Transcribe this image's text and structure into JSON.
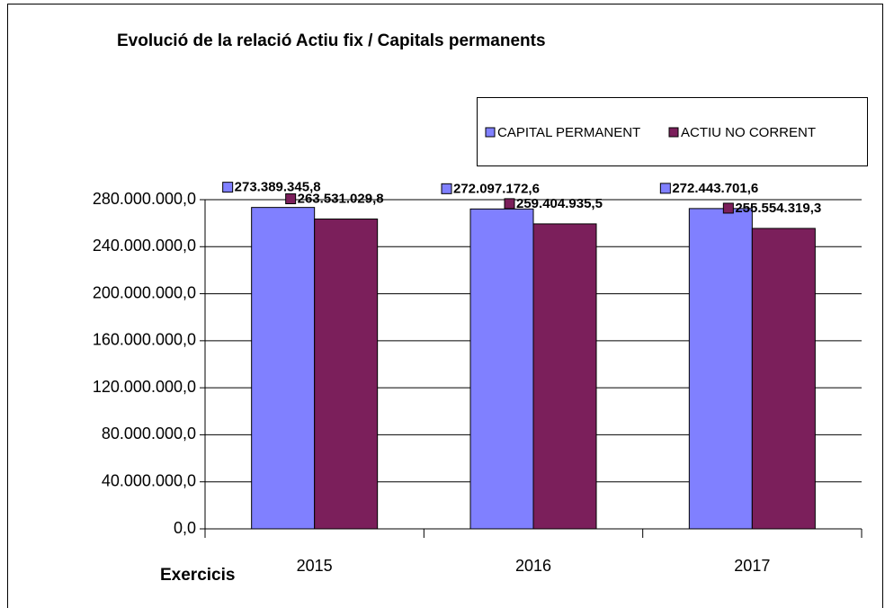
{
  "chart_data": {
    "type": "bar",
    "title": "Evolució de la relació Actiu fix / Capitals permanents",
    "x_label": "Exercicis",
    "categories": [
      "2015",
      "2016",
      "2017"
    ],
    "series": [
      {
        "name": "CAPITAL PERMANENT",
        "color": "#8080ff",
        "values": [
          273389345.8,
          272097172.6,
          272443701.6
        ],
        "value_labels": [
          "273.389.345,8",
          "272.097.172,6",
          "272.443.701,6"
        ]
      },
      {
        "name": "ACTIU NO CORRENT",
        "color": "#7b1f5b",
        "values": [
          263531029.8,
          259404935.5,
          255554319.3
        ],
        "value_labels": [
          "263.531.029,8",
          "259.404.935,5",
          "255.554.319,3"
        ]
      }
    ],
    "ylim": [
      0,
      280000000
    ],
    "yticks": [
      {
        "value": 0,
        "label": "0,0"
      },
      {
        "value": 40000000,
        "label": "40.000.000,0"
      },
      {
        "value": 80000000,
        "label": "80.000.000,0"
      },
      {
        "value": 120000000,
        "label": "120.000.000,0"
      },
      {
        "value": 160000000,
        "label": "160.000.000,0"
      },
      {
        "value": 200000000,
        "label": "200.000.000,0"
      },
      {
        "value": 240000000,
        "label": "240.000.000,0"
      },
      {
        "value": 280000000,
        "label": "280.000.000,0"
      }
    ],
    "grid": true,
    "legend": "top-right"
  }
}
